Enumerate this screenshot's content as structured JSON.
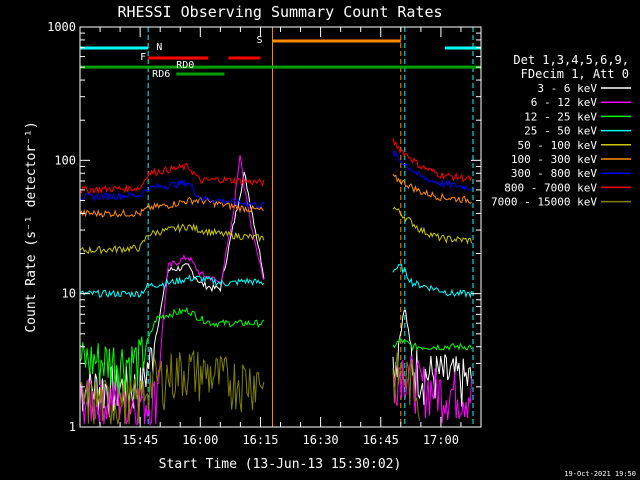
{
  "chart_data": {
    "type": "line",
    "title": "RHESSI Observing Summary Count Rates",
    "xlabel": "Start Time (13-Jun-13 15:30:02)",
    "ylabel": "Count Rate (s⁻¹ detector⁻¹)",
    "yscale": "log",
    "ylim": [
      1,
      1000
    ],
    "xlim": [
      "15:30",
      "17:10"
    ],
    "x_ticks": [
      "15:45",
      "16:00",
      "16:15",
      "16:30",
      "16:45",
      "17:00"
    ],
    "y_ticks": [
      "1",
      "10",
      "100",
      "1000"
    ],
    "legend_header": [
      "Det 1,3,4,5,6,9,",
      "FDecim 1, Att 0"
    ],
    "footer": "19-Oct-2021 19:50",
    "flags": [
      {
        "label": "N",
        "color": "#00ffff",
        "segments": [
          [
            "15:30",
            "15:47"
          ],
          [
            "17:01",
            "17:10"
          ]
        ]
      },
      {
        "label": "S",
        "color": "#ff8c00",
        "segments": [
          [
            "16:18",
            "16:50"
          ]
        ]
      },
      {
        "label": "F",
        "color": "#ff0000",
        "segments": [
          [
            "15:47",
            "16:02"
          ],
          [
            "16:07",
            "16:15"
          ]
        ]
      },
      {
        "label": "RD0",
        "color": "#ff0000",
        "segments": []
      },
      {
        "label": "RD6",
        "color": "#00a000",
        "segments": [
          [
            "15:54",
            "16:06"
          ]
        ]
      }
    ],
    "vlines": [
      {
        "time": "15:47",
        "color": "#00ffff",
        "style": "dashed"
      },
      {
        "time": "16:18",
        "color": "#ff8c00",
        "style": "solid"
      },
      {
        "time": "16:50",
        "color": "#ff8c00",
        "style": "dashed"
      },
      {
        "time": "16:51",
        "color": "#00ffff",
        "style": "dashed"
      },
      {
        "time": "17:08",
        "color": "#00ffff",
        "style": "dashed"
      }
    ],
    "green_bar": {
      "color": "#00a000",
      "value": 500,
      "range": [
        "15:30",
        "17:10"
      ]
    },
    "series": [
      {
        "name": "3 - 6 keV",
        "color": "#ffffff",
        "x": [
          "15:30",
          "15:45",
          "15:48",
          "15:52",
          "15:57",
          "16:00",
          "16:03",
          "16:05",
          "16:08",
          "16:11",
          "16:13",
          "16:16",
          "16:48",
          "16:49",
          "16:51",
          "16:53",
          "16:56",
          "17:00",
          "17:08"
        ],
        "y": [
          2,
          2,
          3.5,
          15,
          16,
          12,
          11,
          11,
          30,
          80,
          40,
          13,
          3,
          3.5,
          8,
          3,
          2.5,
          2.5,
          2.2
        ]
      },
      {
        "name": "6 - 12 keV",
        "color": "#ff00ff",
        "x": [
          "15:30",
          "15:47",
          "15:49",
          "15:52",
          "15:57",
          "16:00",
          "16:03",
          "16:05",
          "16:08",
          "16:10",
          "16:11",
          "16:13",
          "16:16",
          "16:48",
          "16:50",
          "16:52",
          "16:55",
          "17:00",
          "17:08"
        ],
        "y": [
          1.6,
          1.6,
          1.7,
          16,
          19,
          14,
          13,
          12,
          35,
          120,
          60,
          30,
          12,
          2.2,
          3,
          2.5,
          2.1,
          1.9,
          1.8
        ]
      },
      {
        "name": "12 - 25 keV",
        "color": "#00ff00",
        "x": [
          "15:30",
          "15:45",
          "15:47",
          "15:49",
          "15:52",
          "15:57",
          "16:00",
          "16:03",
          "16:05",
          "16:08",
          "16:13",
          "16:16",
          "16:48",
          "16:50",
          "16:53",
          "16:58",
          "17:08"
        ],
        "y": [
          3.2,
          3.2,
          4.5,
          6.5,
          7,
          7.5,
          6.5,
          6,
          6,
          6,
          6,
          6,
          4,
          4.5,
          4,
          4,
          4
        ]
      },
      {
        "name": "25 - 50 keV",
        "color": "#00ffff",
        "x": [
          "15:30",
          "15:45",
          "15:47",
          "15:52",
          "15:57",
          "16:00",
          "16:03",
          "16:05",
          "16:08",
          "16:11",
          "16:16",
          "16:48",
          "16:50",
          "16:53",
          "16:58",
          "17:03",
          "17:08"
        ],
        "y": [
          10,
          10,
          11.5,
          12,
          13,
          13,
          12.5,
          12,
          12,
          12.5,
          12,
          15,
          16,
          12,
          11,
          10,
          10
        ]
      },
      {
        "name": "50 - 100 keV",
        "color": "#c8c800",
        "x": [
          "15:30",
          "15:45",
          "15:47",
          "15:52",
          "15:57",
          "16:00",
          "16:03",
          "16:05",
          "16:10",
          "16:16",
          "16:48",
          "16:50",
          "16:55",
          "17:00",
          "17:08"
        ],
        "y": [
          21,
          22,
          28,
          30,
          32,
          30,
          29,
          28,
          27,
          26,
          45,
          40,
          30,
          26,
          25
        ]
      },
      {
        "name": "100 - 300 keV",
        "color": "#ff8c00",
        "x": [
          "15:30",
          "15:45",
          "15:47",
          "15:52",
          "15:57",
          "16:00",
          "16:05",
          "16:10",
          "16:16",
          "16:48",
          "16:50",
          "16:55",
          "17:00",
          "17:08"
        ],
        "y": [
          40,
          40,
          44,
          46,
          50,
          50,
          47,
          44,
          42,
          75,
          70,
          58,
          53,
          50
        ]
      },
      {
        "name": "300 - 800 keV",
        "color": "#0000ff",
        "x": [
          "15:30",
          "15:45",
          "15:47",
          "15:52",
          "15:57",
          "16:00",
          "16:05",
          "16:10",
          "16:16",
          "16:48",
          "16:50",
          "16:55",
          "17:00",
          "17:08"
        ],
        "y": [
          53,
          55,
          62,
          65,
          68,
          52,
          50,
          48,
          46,
          115,
          100,
          75,
          67,
          62
        ]
      },
      {
        "name": "800 - 7000 keV",
        "color": "#ff0000",
        "x": [
          "15:30",
          "15:45",
          "15:47",
          "15:52",
          "15:57",
          "16:00",
          "16:05",
          "16:10",
          "16:16",
          "16:48",
          "16:50",
          "16:55",
          "17:00",
          "17:08"
        ],
        "y": [
          60,
          62,
          80,
          85,
          90,
          70,
          72,
          70,
          68,
          140,
          120,
          90,
          78,
          72
        ]
      },
      {
        "name": "7000 - 15000 keV",
        "color": "#808000",
        "x": [
          "15:30",
          "15:45",
          "15:47",
          "15:52",
          "15:57",
          "16:00",
          "16:03",
          "16:05",
          "16:08",
          "16:48",
          "16:50",
          "16:53",
          "16:55"
        ],
        "y": [
          1.6,
          1.6,
          2.2,
          2.5,
          2.8,
          2.6,
          2.5,
          2.4,
          2.3,
          2.4,
          2.6,
          2.2,
          1.8
        ]
      }
    ]
  }
}
